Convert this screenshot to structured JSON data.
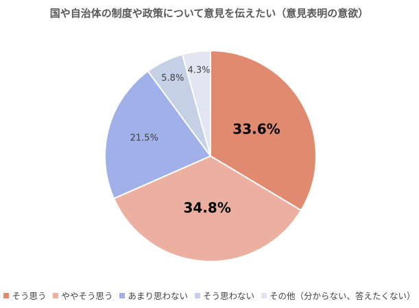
{
  "chart_data": {
    "type": "pie",
    "title": "国や自治体の制度や政策について意見を伝えたい（意見表明の意欲）",
    "categories": [
      "そう思う",
      "ややそう思う",
      "あまり思わない",
      "そう思わない",
      "その他（分からない、答えたくない）"
    ],
    "values": [
      33.6,
      34.8,
      21.5,
      5.8,
      4.3
    ],
    "value_labels": [
      "33.6%",
      "34.8%",
      "21.5%",
      "5.8%",
      "4.3%"
    ],
    "colors": [
      "#e08a70",
      "#ecb0a0",
      "#9fb1e8",
      "#c5cfe6",
      "#e3e6f2"
    ],
    "legend": "bottom"
  }
}
